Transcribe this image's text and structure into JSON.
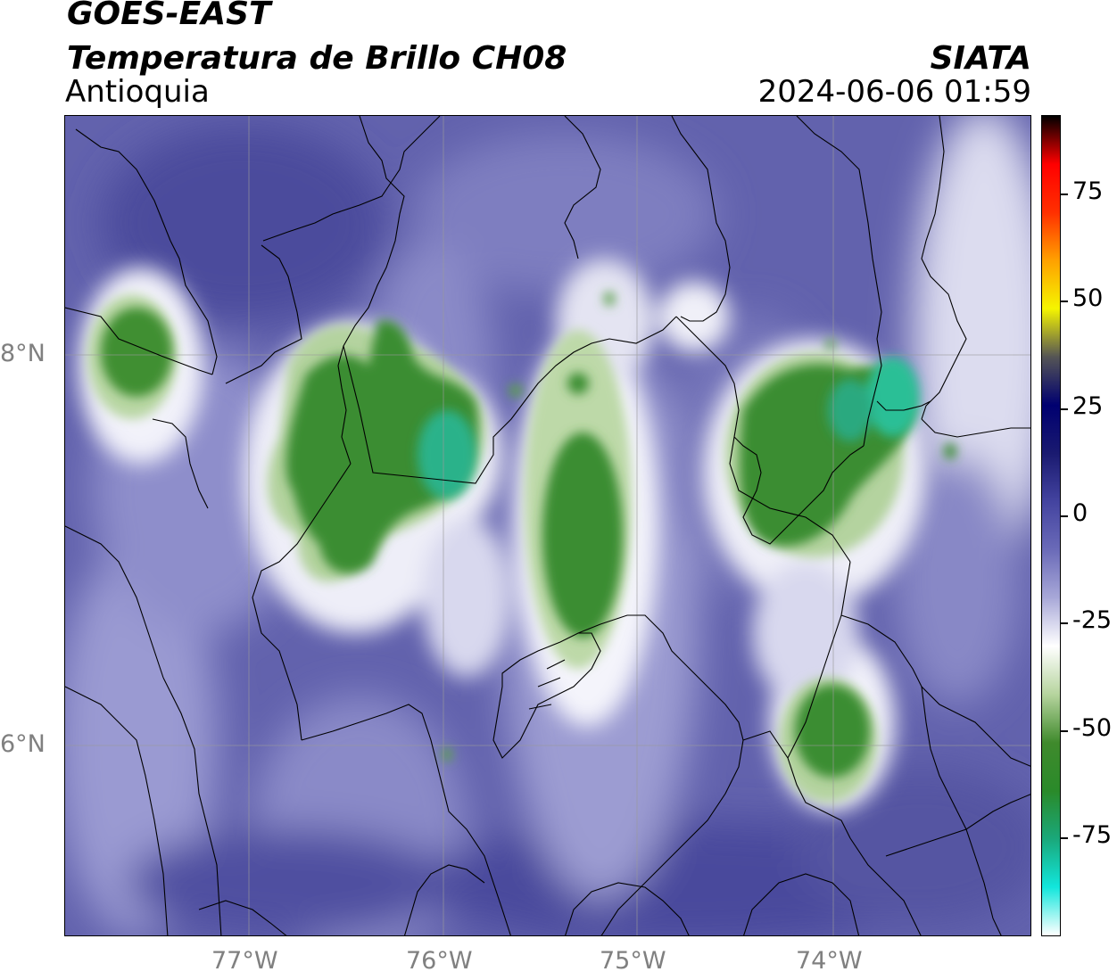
{
  "header": {
    "satellite": "GOES-EAST",
    "product": "Temperatura de Brillo CH08",
    "region": "Antioquia",
    "agency": "SIATA",
    "datetime": "2024-06-06 01:59"
  },
  "axes": {
    "lat_labels": [
      "8°N",
      "6°N"
    ],
    "lon_labels": [
      "77°W",
      "76°W",
      "75°W",
      "74°W"
    ]
  },
  "colorbar": {
    "tick_labels": [
      "75",
      "50",
      "25",
      "0",
      "-25",
      "-50",
      "-75"
    ],
    "stops": [
      "#ffffff",
      "#12e6dc",
      "#1aa87a",
      "#2a8a2a",
      "#3f8a2c",
      "#b6d49e",
      "#ffffff",
      "#a8a8d8",
      "#6a6ab8",
      "#4444a0",
      "#1a1a70",
      "#000070",
      "#555555",
      "#f5f500",
      "#ffa000",
      "#ff3000",
      "#ff0000",
      "#000000"
    ]
  },
  "colors": {
    "background_cloud_free": "#5a5aa8",
    "cold_cloud": "#3a8f33",
    "very_cold_cloud": "#2abf96",
    "grid": "#9a9a9a"
  }
}
